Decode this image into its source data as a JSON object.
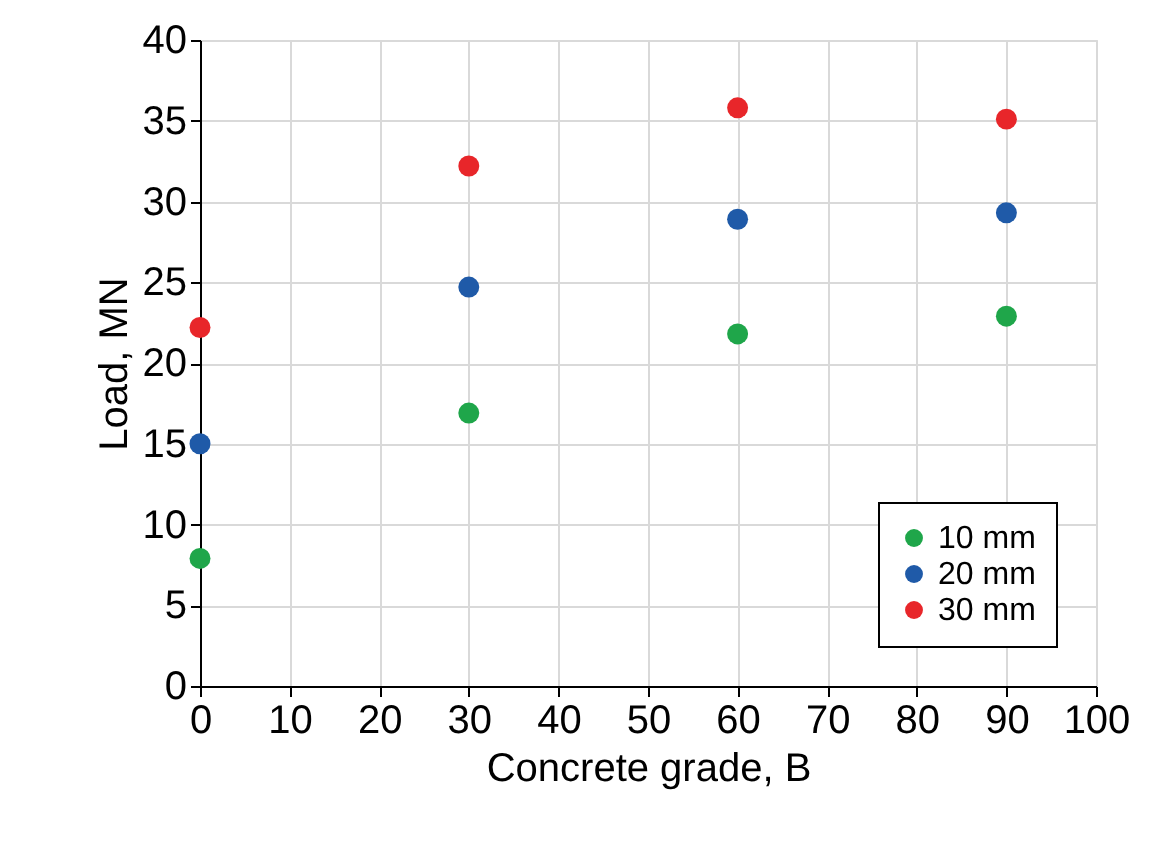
{
  "chart_data": {
    "type": "scatter",
    "xlabel": "Concrete grade, B",
    "ylabel": "Load, MN",
    "x": [
      0,
      30,
      60,
      90
    ],
    "series": [
      {
        "name": "10 mm",
        "color": "#1fa64a",
        "values": [
          7.9,
          16.9,
          21.8,
          22.9
        ]
      },
      {
        "name": "20 mm",
        "color": "#1f5aa8",
        "values": [
          15.0,
          24.7,
          28.9,
          29.3
        ]
      },
      {
        "name": "30 mm",
        "color": "#e8262a",
        "values": [
          22.2,
          32.2,
          35.8,
          35.1
        ]
      }
    ],
    "xlim": [
      0,
      100
    ],
    "xticks": [
      0,
      10,
      20,
      30,
      40,
      50,
      60,
      70,
      80,
      90,
      100
    ],
    "ylim": [
      0,
      40
    ],
    "yticks": [
      0,
      5,
      10,
      15,
      20,
      25,
      30,
      35,
      40
    ],
    "grid": true,
    "legend": "bottom right",
    "marker": "circle"
  }
}
